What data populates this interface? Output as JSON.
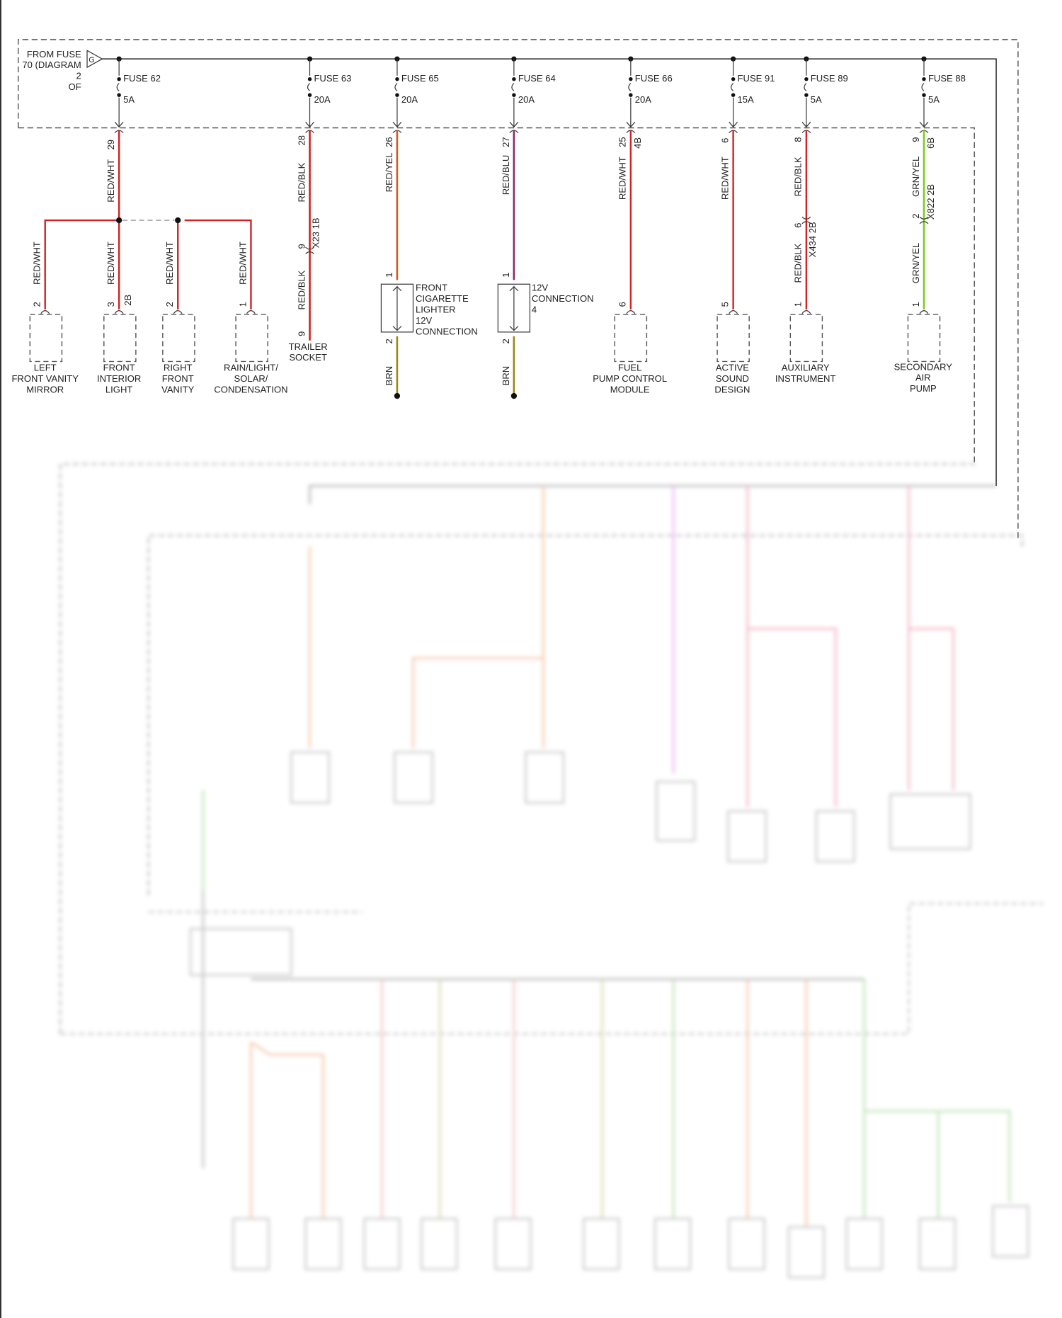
{
  "source": {
    "lines": [
      "FROM FUSE",
      "70 (DIAGRAM",
      "2",
      "OF"
    ],
    "connector_letter": "G"
  },
  "fuses": [
    {
      "name": "FUSE 62",
      "rating": "5A"
    },
    {
      "name": "FUSE 63",
      "rating": "20A"
    },
    {
      "name": "FUSE 65",
      "rating": "20A"
    },
    {
      "name": "FUSE 64",
      "rating": "20A"
    },
    {
      "name": "FUSE 66",
      "rating": "20A"
    },
    {
      "name": "FUSE 91",
      "rating": "15A"
    },
    {
      "name": "FUSE 89",
      "rating": "5A"
    },
    {
      "name": "FUSE 88",
      "rating": "5A"
    }
  ],
  "circuits": {
    "c62": {
      "pin": "29",
      "wire": "RED/WHT",
      "branches": [
        {
          "wire": "RED/WHT",
          "pin": "2",
          "label": [
            "LEFT",
            "FRONT VANITY",
            "MIRROR"
          ]
        },
        {
          "wire": "RED/WHT",
          "pin": "3",
          "pin2": "2B",
          "label": [
            "FRONT",
            "INTERIOR",
            "LIGHT"
          ]
        },
        {
          "wire": "RED/WHT",
          "pin": "2",
          "label": [
            "RIGHT",
            "FRONT",
            "VANITY"
          ]
        },
        {
          "wire": "RED/WHT",
          "pin": "1",
          "label": [
            "RAIN/LIGHT/",
            "SOLAR/",
            "CONDENSATION"
          ]
        }
      ]
    },
    "c63": {
      "pin": "28",
      "wire": "RED/BLK",
      "conn_pin": "9",
      "conn": "X23 1B",
      "wire2": "RED/BLK",
      "end_pin": "9",
      "label": [
        "TRAILER",
        "SOCKET"
      ]
    },
    "c65": {
      "pin": "26",
      "wire": "RED/YEL",
      "pin_in": "1",
      "pin_out": "2",
      "ground_wire": "BRN",
      "label": [
        "FRONT",
        "CIGARETTE",
        "LIGHTER",
        "12V",
        "CONNECTION"
      ]
    },
    "c64": {
      "pin": "27",
      "wire": "RED/BLU",
      "pin_in": "1",
      "pin_out": "2",
      "ground_wire": "BRN",
      "label": [
        "12V",
        "CONNECTION",
        "4"
      ]
    },
    "c66": {
      "pin": "25",
      "pin2": "4B",
      "wire": "RED/WHT",
      "end_pin": "6",
      "label": [
        "FUEL",
        "PUMP CONTROL",
        "MODULE"
      ]
    },
    "c91": {
      "pin": "6",
      "wire": "RED/WHT",
      "end_pin": "5",
      "label": [
        "ACTIVE",
        "SOUND",
        "DESIGN"
      ]
    },
    "c89": {
      "pin": "8",
      "wire": "RED/BLK",
      "conn_pin": "6",
      "conn": "X434 2B",
      "wire2": "RED/BLK",
      "end_pin": "1",
      "label": [
        "AUXILIARY",
        "INSTRUMENT"
      ]
    },
    "c88": {
      "pin": "9",
      "pin2": "6B",
      "wire": "GRN/YEL",
      "conn_pin": "2",
      "conn": "X822 2B",
      "wire2": "GRN/YEL",
      "end_pin": "1",
      "label": [
        "SECONDARY",
        "AIR",
        "PUMP"
      ]
    }
  },
  "colors": {
    "red": "#d42020",
    "orange": "#e07b20",
    "purple": "#8a2b6a",
    "olive": "#9a8a10",
    "green": "#7fcc22",
    "pink": "#f080a0",
    "violet": "#e080f0",
    "salmon": "#f0a070"
  }
}
